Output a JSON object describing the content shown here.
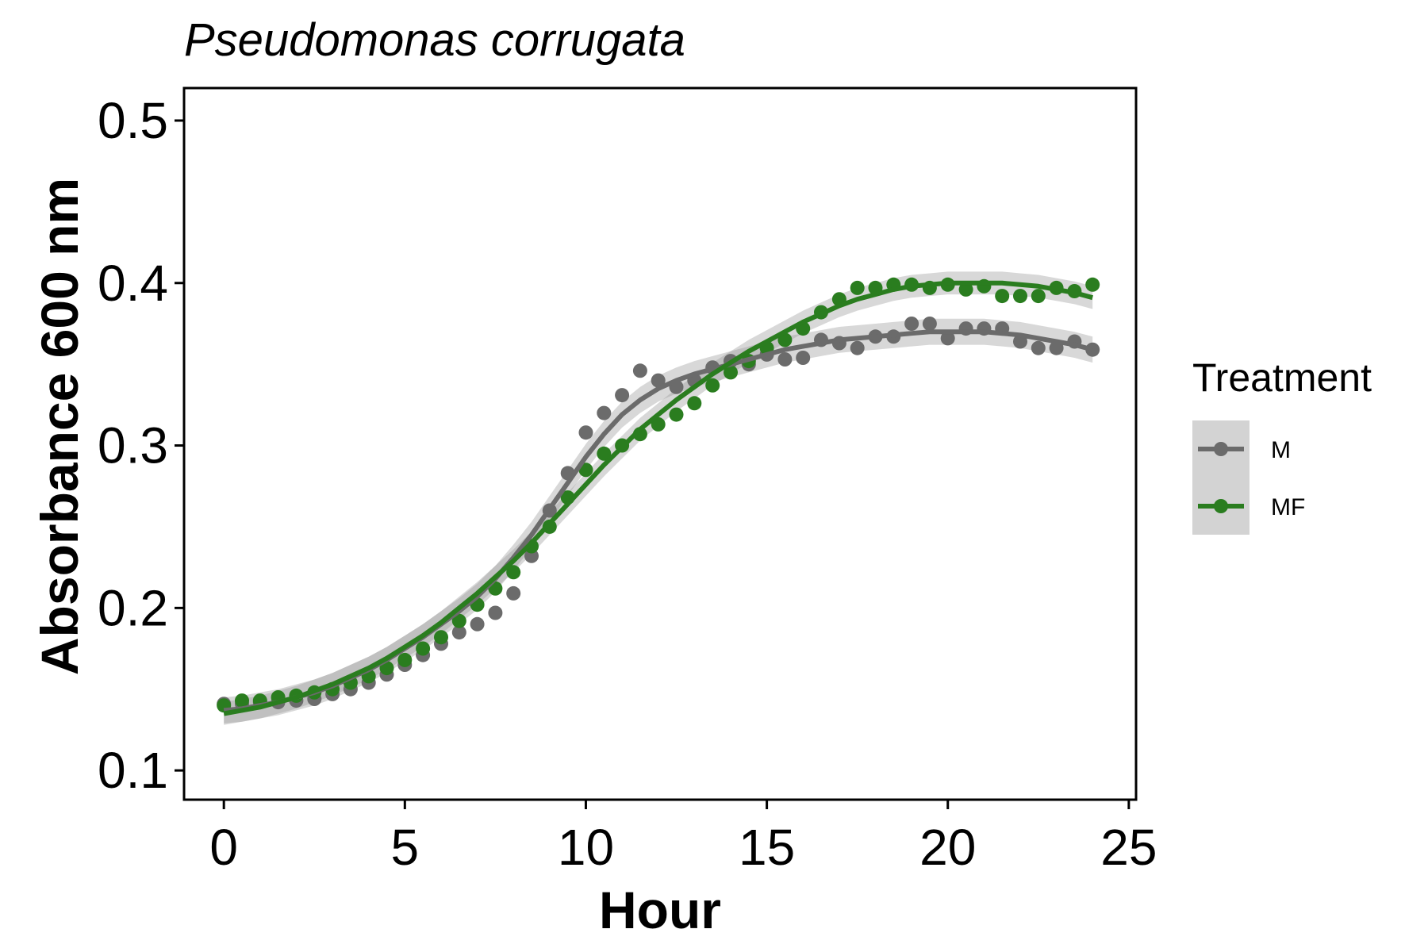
{
  "chart_data": {
    "type": "scatter",
    "title": "Pseudomonas corrugata",
    "xlabel": "Hour",
    "ylabel": "Absorbance 600 nm",
    "xlim": [
      -1.1,
      25.2
    ],
    "ylim": [
      0.082,
      0.52
    ],
    "xticks": [
      0,
      5,
      10,
      15,
      20,
      25
    ],
    "yticks": [
      0.1,
      0.2,
      0.3,
      0.4,
      0.5
    ],
    "legend_title": "Treatment",
    "legend_position": "right",
    "grid": false,
    "series": [
      {
        "name": "M",
        "color": "#6b6b6b",
        "x": [
          0,
          0.5,
          1,
          1.5,
          2,
          2.5,
          3,
          3.5,
          4,
          4.5,
          5,
          5.5,
          6,
          6.5,
          7,
          7.5,
          8,
          8.5,
          9,
          9.5,
          10,
          10.5,
          11,
          11.5,
          12,
          12.5,
          13,
          13.5,
          14,
          14.5,
          15,
          15.5,
          16,
          16.5,
          17,
          17.5,
          18,
          18.5,
          19,
          19.5,
          20,
          20.5,
          21,
          21.5,
          22,
          22.5,
          23,
          23.5,
          24
        ],
        "y": [
          0.141,
          0.141,
          0.142,
          0.142,
          0.143,
          0.144,
          0.147,
          0.15,
          0.154,
          0.159,
          0.165,
          0.171,
          0.178,
          0.185,
          0.19,
          0.197,
          0.209,
          0.232,
          0.26,
          0.283,
          0.308,
          0.32,
          0.331,
          0.346,
          0.34,
          0.336,
          0.34,
          0.348,
          0.352,
          0.35,
          0.356,
          0.353,
          0.354,
          0.365,
          0.363,
          0.36,
          0.367,
          0.367,
          0.375,
          0.375,
          0.366,
          0.372,
          0.372,
          0.372,
          0.364,
          0.36,
          0.36,
          0.364,
          0.359
        ],
        "fit_y": [
          0.137,
          0.138,
          0.14,
          0.142,
          0.145,
          0.148,
          0.152,
          0.157,
          0.162,
          0.168,
          0.175,
          0.182,
          0.19,
          0.198,
          0.207,
          0.218,
          0.231,
          0.245,
          0.261,
          0.277,
          0.293,
          0.307,
          0.319,
          0.328,
          0.335,
          0.34,
          0.344,
          0.347,
          0.35,
          0.353,
          0.356,
          0.359,
          0.361,
          0.363,
          0.365,
          0.366,
          0.367,
          0.368,
          0.369,
          0.37,
          0.37,
          0.37,
          0.37,
          0.369,
          0.368,
          0.366,
          0.364,
          0.362,
          0.359
        ],
        "band": 0.008
      },
      {
        "name": "MF",
        "color": "#2a7d1f",
        "x": [
          0,
          0.5,
          1,
          1.5,
          2,
          2.5,
          3,
          3.5,
          4,
          4.5,
          5,
          5.5,
          6,
          6.5,
          7,
          7.5,
          8,
          8.5,
          9,
          9.5,
          10,
          10.5,
          11,
          11.5,
          12,
          12.5,
          13,
          13.5,
          14,
          14.5,
          15,
          15.5,
          16,
          16.5,
          17,
          17.5,
          18,
          18.5,
          19,
          19.5,
          20,
          20.5,
          21,
          21.5,
          22,
          22.5,
          23,
          23.5,
          24
        ],
        "y": [
          0.14,
          0.143,
          0.143,
          0.145,
          0.146,
          0.148,
          0.15,
          0.154,
          0.158,
          0.163,
          0.168,
          0.175,
          0.182,
          0.192,
          0.202,
          0.212,
          0.222,
          0.238,
          0.25,
          0.268,
          0.285,
          0.295,
          0.3,
          0.307,
          0.313,
          0.319,
          0.326,
          0.337,
          0.345,
          0.352,
          0.36,
          0.365,
          0.372,
          0.382,
          0.39,
          0.397,
          0.397,
          0.399,
          0.399,
          0.397,
          0.399,
          0.396,
          0.398,
          0.392,
          0.392,
          0.392,
          0.397,
          0.395,
          0.399
        ],
        "fit_y": [
          0.135,
          0.137,
          0.139,
          0.142,
          0.145,
          0.149,
          0.153,
          0.158,
          0.163,
          0.169,
          0.176,
          0.183,
          0.191,
          0.2,
          0.209,
          0.219,
          0.229,
          0.24,
          0.252,
          0.264,
          0.276,
          0.288,
          0.299,
          0.31,
          0.319,
          0.328,
          0.336,
          0.344,
          0.351,
          0.358,
          0.364,
          0.37,
          0.376,
          0.381,
          0.386,
          0.39,
          0.393,
          0.396,
          0.398,
          0.399,
          0.4,
          0.4,
          0.4,
          0.4,
          0.399,
          0.398,
          0.396,
          0.394,
          0.391
        ],
        "band": 0.007
      }
    ]
  }
}
